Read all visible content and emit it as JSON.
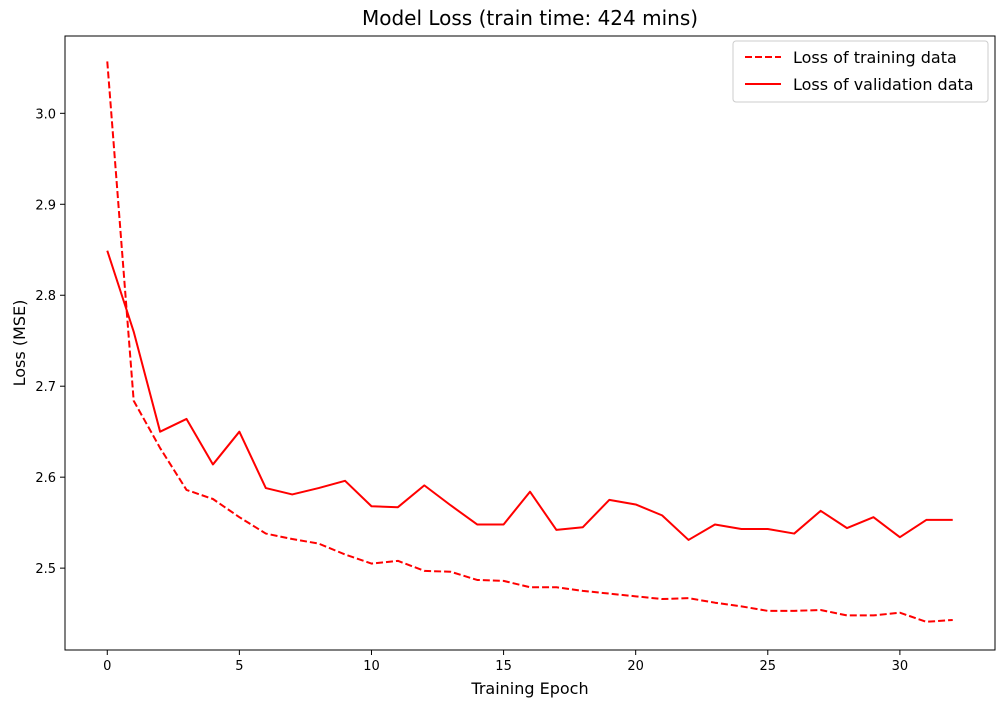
{
  "chart_data": {
    "type": "line",
    "title": "Model Loss (train time: 424 mins)",
    "xlabel": "Training Epoch",
    "ylabel": "Loss (MSE)",
    "xlim": [
      -1.6,
      33.6
    ],
    "ylim": [
      2.41,
      3.085
    ],
    "xticks": [
      0,
      5,
      10,
      15,
      20,
      25,
      30
    ],
    "yticks": [
      2.5,
      2.6,
      2.7,
      2.8,
      2.9,
      3.0
    ],
    "ytick_labels": [
      "2.5",
      "2.6",
      "2.7",
      "2.8",
      "2.9",
      "3.0"
    ],
    "grid": false,
    "legend_position": "top-right",
    "series": [
      {
        "name": "Loss of training data",
        "color": "#ff0000",
        "style": "dashed",
        "x": [
          0,
          1,
          2,
          3,
          4,
          5,
          6,
          7,
          8,
          9,
          10,
          11,
          12,
          13,
          14,
          15,
          16,
          17,
          18,
          19,
          20,
          21,
          22,
          23,
          24,
          25,
          26,
          27,
          28,
          29,
          30,
          31,
          32
        ],
        "y": [
          3.057,
          2.684,
          2.632,
          2.586,
          2.576,
          2.556,
          2.538,
          2.532,
          2.527,
          2.515,
          2.505,
          2.508,
          2.497,
          2.496,
          2.487,
          2.486,
          2.479,
          2.479,
          2.475,
          2.472,
          2.469,
          2.466,
          2.467,
          2.462,
          2.458,
          2.453,
          2.453,
          2.454,
          2.448,
          2.448,
          2.451,
          2.441,
          2.443
        ]
      },
      {
        "name": "Loss of validation data",
        "color": "#ff0000",
        "style": "solid",
        "x": [
          0,
          1,
          2,
          3,
          4,
          5,
          6,
          7,
          8,
          9,
          10,
          11,
          12,
          13,
          14,
          15,
          16,
          17,
          18,
          19,
          20,
          21,
          22,
          23,
          24,
          25,
          26,
          27,
          28,
          29,
          30,
          31,
          32
        ],
        "y": [
          2.849,
          2.76,
          2.65,
          2.664,
          2.614,
          2.65,
          2.588,
          2.581,
          2.588,
          2.596,
          2.568,
          2.567,
          2.591,
          2.569,
          2.548,
          2.548,
          2.584,
          2.542,
          2.545,
          2.575,
          2.57,
          2.558,
          2.531,
          2.548,
          2.543,
          2.543,
          2.538,
          2.563,
          2.544,
          2.556,
          2.534,
          2.553,
          2.553
        ]
      }
    ]
  }
}
